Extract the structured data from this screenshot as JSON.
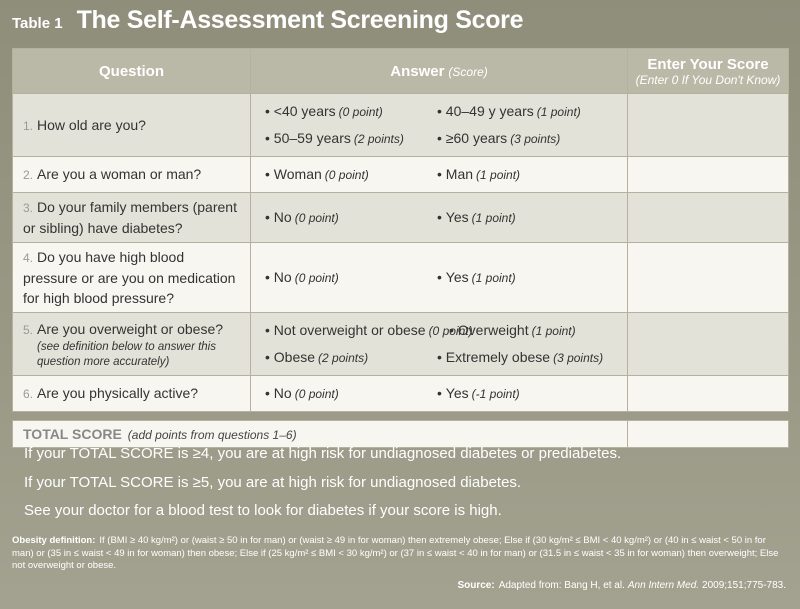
{
  "header": {
    "label": "Table 1",
    "title": "The Self-Assessment Screening Score"
  },
  "table": {
    "columns": [
      {
        "text": "Question"
      },
      {
        "text": "Answer",
        "note": "(Score)"
      },
      {
        "text": "Enter Your Score",
        "note": "(Enter 0 If You Don't Know)"
      }
    ],
    "rows": [
      {
        "number": "1.",
        "question": "How old are you?",
        "answers": [
          [
            {
              "text": "<40 years",
              "score": "(0 point)"
            },
            {
              "text": "40–49 y years",
              "score": "(1 point)"
            }
          ],
          [
            {
              "text": "50–59 years",
              "score": "(2 points)"
            },
            {
              "text": "≥60 years",
              "score": "(3 points)"
            }
          ]
        ]
      },
      {
        "number": "2.",
        "question": "Are you a woman or man?",
        "answers": [
          [
            {
              "text": "Woman",
              "score": "(0 point)"
            },
            {
              "text": "Man",
              "score": "(1 point)"
            }
          ]
        ]
      },
      {
        "number": "3.",
        "question": "Do your family members (parent or sibling) have diabetes?",
        "answers": [
          [
            {
              "text": "No",
              "score": "(0 point)"
            },
            {
              "text": "Yes",
              "score": "(1 point)"
            }
          ]
        ]
      },
      {
        "number": "4.",
        "question": "Do you have high blood pressure or are you on medication for high blood pressure?",
        "answers": [
          [
            {
              "text": "No",
              "score": "(0 point)"
            },
            {
              "text": "Yes",
              "score": "(1 point)"
            }
          ]
        ]
      },
      {
        "number": "5.",
        "question": "Are you overweight or obese?",
        "note": "(see definition below to answer this question more accurately)",
        "answers": [
          [
            {
              "text": "Not overweight or obese",
              "score": "(0 point)"
            },
            {
              "text": "Overweight",
              "score": "(1 point)"
            }
          ],
          [
            {
              "text": "Obese",
              "score": "(2 points)"
            },
            {
              "text": "Extremely obese",
              "score": "(3 points)"
            }
          ]
        ]
      },
      {
        "number": "6.",
        "question": "Are you physically active?",
        "answers": [
          [
            {
              "text": "No",
              "score": "(0 point)"
            },
            {
              "text": "Yes",
              "score": "(-1 point)"
            }
          ]
        ]
      }
    ],
    "total": {
      "label": "TOTAL SCORE",
      "note": "(add points from questions 1–6)"
    }
  },
  "messages": [
    "If your TOTAL SCORE is ≥4, you are at high risk for undiagnosed diabetes or prediabetes.",
    "If your TOTAL SCORE is ≥5, you are at high risk for undiagnosed diabetes.",
    "See your doctor for a blood test to look for diabetes if your score is high."
  ],
  "footnote": {
    "label": "Obesity definition:",
    "text": "If (BMI ≥ 40 kg/m²) or (waist ≥ 50 in for man) or (waist ≥ 49 in for woman) then extremely obese;  Else if (30 kg/m² ≤ BMI < 40 kg/m²) or (40 in ≤ waist < 50 in for man) or (35 in ≤ waist < 49 in for woman) then obese;  Else if (25 kg/m² ≤ BMI < 30 kg/m²) or (37 in ≤ waist < 40 in for man) or (31.5 in ≤ waist < 35 in for woman) then overweight;  Else not overweight or obese."
  },
  "source": {
    "label": "Source:",
    "text": "Adapted from: Bang H, et al.",
    "journal": "Ann Intern Med.",
    "citation": "2009;151;775-783."
  }
}
